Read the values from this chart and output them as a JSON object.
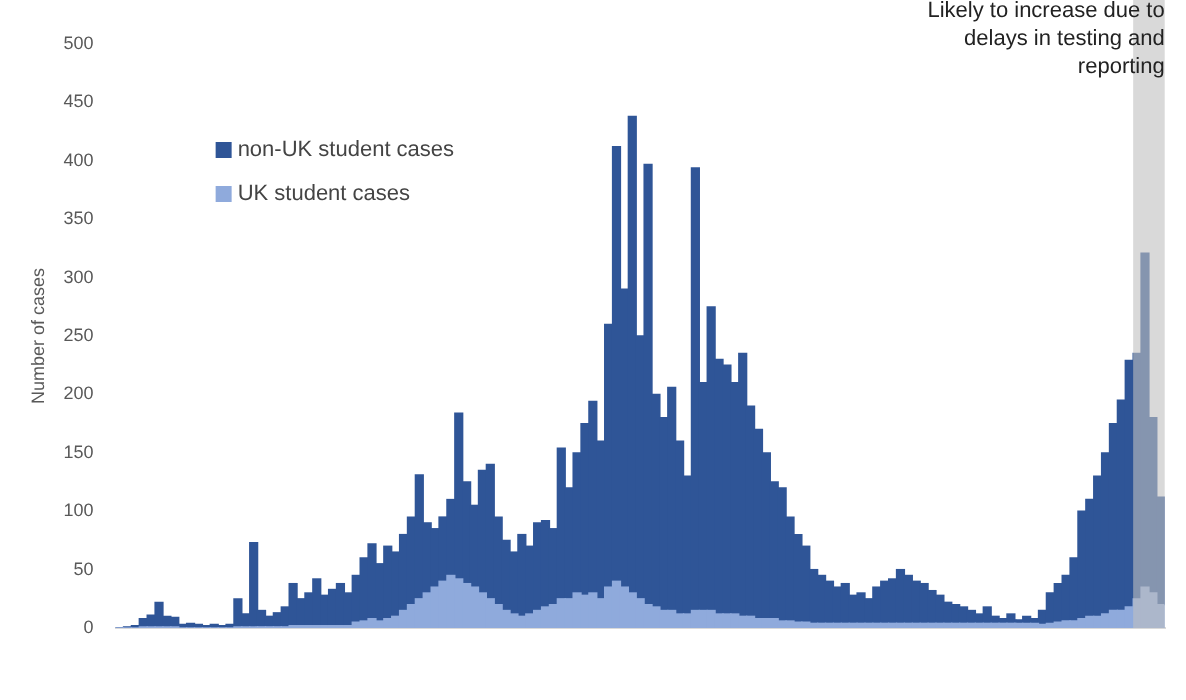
{
  "chart_data": {
    "type": "bar",
    "stacked": true,
    "ylabel": "Number of cases",
    "ylim": [
      0,
      500
    ],
    "yticks": [
      0,
      50,
      100,
      150,
      200,
      250,
      300,
      350,
      400,
      450,
      500
    ],
    "grid": false,
    "legend": "top left",
    "categories": [
      null,
      null,
      null,
      null,
      null,
      null,
      null,
      null,
      null,
      null,
      null,
      null,
      null,
      null,
      null,
      null,
      null,
      null,
      null,
      null,
      null,
      null,
      null,
      null,
      null,
      null,
      null,
      null,
      null,
      null,
      null,
      null,
      null,
      null,
      null,
      null,
      null,
      null,
      null,
      null,
      null,
      null,
      null,
      null,
      null,
      null,
      null,
      null,
      null,
      null,
      null,
      null,
      null,
      null,
      null,
      null,
      null,
      null,
      null,
      null,
      null,
      null,
      null,
      null,
      null,
      null,
      null,
      null,
      null,
      null,
      null,
      null,
      null,
      null,
      null,
      null,
      null,
      null,
      null,
      null,
      null,
      null,
      null,
      null,
      null,
      null,
      null,
      null,
      null,
      null,
      null,
      null,
      null,
      null,
      null,
      null,
      null,
      null,
      null,
      null,
      null,
      null,
      null,
      null,
      null,
      null,
      null,
      null,
      null,
      null,
      null,
      null,
      null,
      null,
      null,
      null,
      null,
      null,
      null,
      null,
      null,
      null,
      null,
      null,
      null,
      null,
      null,
      null,
      null,
      null,
      null,
      null,
      null
    ],
    "series": [
      {
        "name": "UK student cases",
        "color": "#8faadc",
        "values": [
          0,
          0,
          0,
          1,
          1,
          1,
          1,
          1,
          0,
          0,
          0,
          0,
          0,
          0,
          0,
          1,
          1,
          1,
          1,
          1,
          1,
          1,
          2,
          2,
          2,
          2,
          2,
          2,
          2,
          2,
          5,
          6,
          8,
          6,
          8,
          10,
          15,
          20,
          25,
          30,
          35,
          40,
          45,
          42,
          38,
          35,
          30,
          25,
          20,
          15,
          12,
          10,
          12,
          15,
          18,
          20,
          25,
          25,
          30,
          28,
          30,
          25,
          35,
          40,
          35,
          30,
          25,
          20,
          18,
          15,
          15,
          12,
          12,
          15,
          15,
          15,
          12,
          12,
          12,
          10,
          10,
          8,
          8,
          8,
          6,
          6,
          5,
          5,
          4,
          4,
          4,
          4,
          4,
          4,
          4,
          4,
          4,
          4,
          4,
          4,
          4,
          4,
          4,
          4,
          4,
          4,
          4,
          4,
          4,
          4,
          4,
          4,
          4,
          4,
          4,
          4,
          4,
          3,
          4,
          5,
          6,
          6,
          8,
          10,
          10,
          12,
          15,
          15,
          18,
          25,
          35,
          30,
          20
        ]
      },
      {
        "name": "non-UK student cases",
        "color": "#2f5597",
        "values": [
          0,
          1,
          2,
          7,
          10,
          21,
          9,
          8,
          3,
          4,
          3,
          2,
          3,
          2,
          3,
          24,
          11,
          72,
          14,
          9,
          12,
          17,
          36,
          23,
          28,
          40,
          26,
          31,
          36,
          28,
          40,
          54,
          64,
          49,
          62,
          55,
          65,
          75,
          106,
          60,
          50,
          55,
          65,
          142,
          87,
          70,
          105,
          115,
          75,
          60,
          53,
          70,
          58,
          75,
          74,
          65,
          129,
          95,
          120,
          147,
          164,
          135,
          225,
          372,
          255,
          408,
          225,
          377,
          182,
          165,
          191,
          148,
          118,
          379,
          195,
          260,
          218,
          213,
          198,
          225,
          180,
          162,
          142,
          117,
          114,
          89,
          75,
          65,
          46,
          41,
          36,
          31,
          34,
          24,
          26,
          21,
          31,
          36,
          38,
          46,
          41,
          36,
          34,
          28,
          24,
          18,
          16,
          14,
          11,
          8,
          14,
          6,
          4,
          8,
          3,
          6,
          4,
          12,
          26,
          33,
          39,
          54,
          92,
          100,
          120,
          138,
          160,
          180,
          211,
          210,
          286,
          150,
          92
        ]
      }
    ],
    "annotations": [
      "Likely to increase due to delays in testing and reporting"
    ]
  }
}
